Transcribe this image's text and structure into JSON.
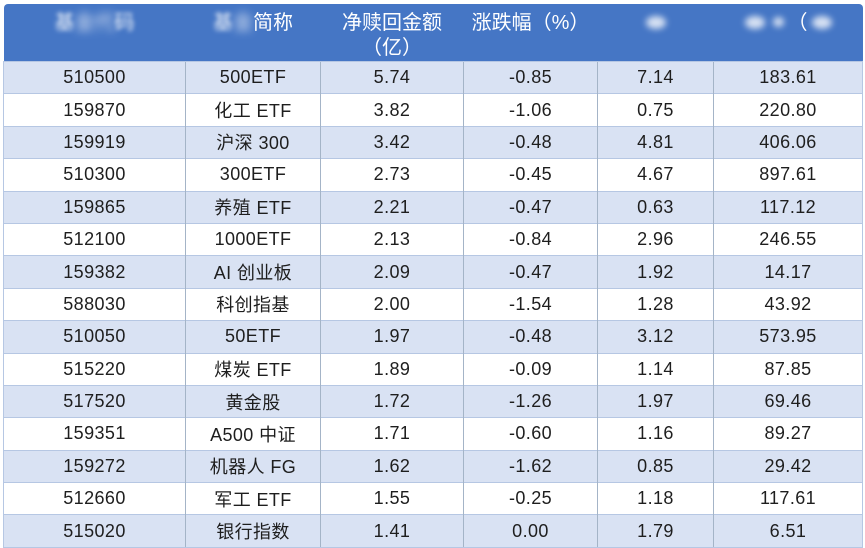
{
  "colors": {
    "header_bg": "#4576C5",
    "row_alt": "#D9E2F3",
    "row_base": "#FFFFFF",
    "border_h": "#B6C7E3",
    "border_v": "#A4B4C7",
    "header_text": "#FFFFFF",
    "cell_text": "#1E1E1E"
  },
  "table": {
    "column_ids": [
      "fund-code",
      "fund-name",
      "net-redemption-amount",
      "change-percent",
      "blurred-col-5",
      "blurred-col-6"
    ],
    "headers": [
      {
        "name": "fund-code",
        "parts": [
          {
            "text": "基",
            "blur": "medium"
          },
          {
            "text": "金代",
            "blur": "heavy"
          },
          {
            "text": "码",
            "blur": "medium"
          }
        ]
      },
      {
        "name": "fund-name",
        "parts": [
          {
            "text": "基",
            "blur": "medium"
          },
          {
            "text": "金",
            "blur": "heavy"
          },
          {
            "text": "简称",
            "blur": "none"
          }
        ]
      },
      {
        "name": "net-redemption-amount",
        "lines": [
          "净赎回金额",
          "（亿）"
        ]
      },
      {
        "name": "change-percent",
        "lines": [
          "涨跌幅（%）"
        ]
      },
      {
        "name": "blurred-col-5",
        "parts": [
          {
            "smudge": "medium"
          }
        ]
      },
      {
        "name": "blurred-col-6",
        "parts": [
          {
            "smudge": "medium"
          },
          {
            "smudge": "small"
          },
          {
            "text": "（",
            "blur": "none"
          },
          {
            "smudge": "medium"
          }
        ]
      }
    ],
    "rows": [
      [
        "510500",
        "500ETF",
        "5.74",
        "-0.85",
        "7.14",
        "183.61"
      ],
      [
        "159870",
        "化工 ETF",
        "3.82",
        "-1.06",
        "0.75",
        "220.80"
      ],
      [
        "159919",
        "沪深 300",
        "3.42",
        "-0.48",
        "4.81",
        "406.06"
      ],
      [
        "510300",
        "300ETF",
        "2.73",
        "-0.45",
        "4.67",
        "897.61"
      ],
      [
        "159865",
        "养殖 ETF",
        "2.21",
        "-0.47",
        "0.63",
        "117.12"
      ],
      [
        "512100",
        "1000ETF",
        "2.13",
        "-0.84",
        "2.96",
        "246.55"
      ],
      [
        "159382",
        "AI 创业板",
        "2.09",
        "-0.47",
        "1.92",
        "14.17"
      ],
      [
        "588030",
        "科创指基",
        "2.00",
        "-1.54",
        "1.28",
        "43.92"
      ],
      [
        "510050",
        "50ETF",
        "1.97",
        "-0.48",
        "3.12",
        "573.95"
      ],
      [
        "515220",
        "煤炭 ETF",
        "1.89",
        "-0.09",
        "1.14",
        "87.85"
      ],
      [
        "517520",
        "黄金股",
        "1.72",
        "-1.26",
        "1.97",
        "69.46"
      ],
      [
        "159351",
        "A500 中证",
        "1.71",
        "-0.60",
        "1.16",
        "89.27"
      ],
      [
        "159272",
        "机器人 FG",
        "1.62",
        "-1.62",
        "0.85",
        "29.42"
      ],
      [
        "512660",
        "军工 ETF",
        "1.55",
        "-0.25",
        "1.18",
        "117.61"
      ],
      [
        "515020",
        "银行指数",
        "1.41",
        "0.00",
        "1.79",
        "6.51"
      ]
    ]
  }
}
